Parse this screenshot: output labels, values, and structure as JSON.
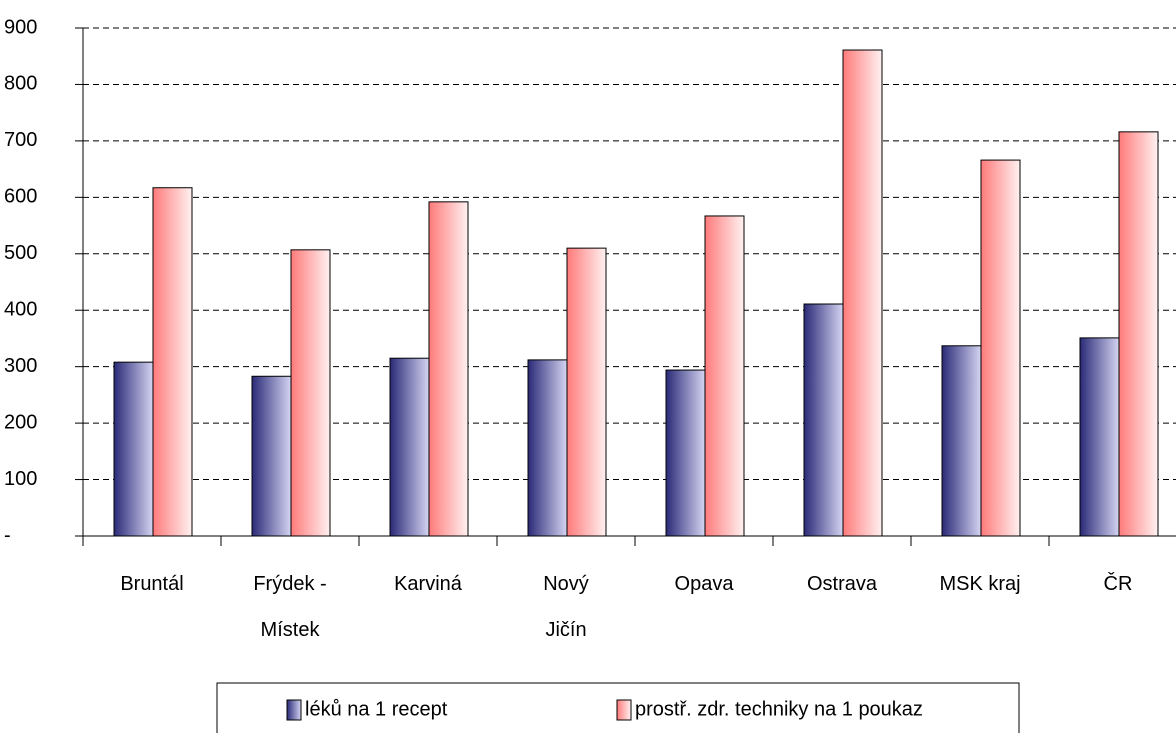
{
  "chart_data": {
    "type": "bar",
    "categories": [
      "Bruntál",
      "Frýdek - Místek",
      "Karviná",
      "Nový Jičín",
      "Opava",
      "Ostrava",
      "MSK kraj",
      "ČR"
    ],
    "series": [
      {
        "name": "léků na 1 recept",
        "color": "#333399",
        "values": [
          308,
          283,
          315,
          312,
          294,
          411,
          337,
          351
        ]
      },
      {
        "name": "prostř. zdr. techniky na 1 poukaz",
        "color": "#ff9999",
        "values": [
          617,
          507,
          592,
          510,
          567,
          861,
          666,
          716
        ]
      }
    ],
    "ylim": [
      0,
      900
    ],
    "yticks": [
      {
        "value": 0,
        "label": "-"
      },
      100,
      200,
      300,
      400,
      500,
      600,
      700,
      800,
      900
    ],
    "grid": true
  }
}
